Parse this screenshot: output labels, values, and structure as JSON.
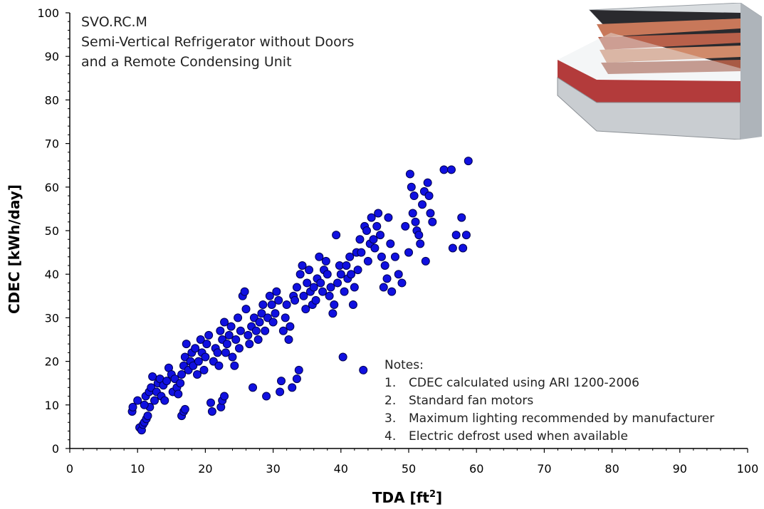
{
  "figure": {
    "title_lines": [
      "SVO.RC.M",
      "Semi-Vertical Refrigerator without Doors",
      "and a Remote Condensing Unit"
    ],
    "notes_heading": "Notes:",
    "notes": [
      {
        "num": "1.",
        "text": "CDEC calculated using ARI 1200-2006"
      },
      {
        "num": "2.",
        "text": "Standard fan motors"
      },
      {
        "num": "3.",
        "text": "Maximum lighting recommended by manufacturer"
      },
      {
        "num": "4.",
        "text": "Electric defrost used when available"
      }
    ],
    "photo_icon": "refrigerated-display-case-photo"
  },
  "colors": {
    "marker_fill": "#1010e0",
    "marker_stroke": "#000050",
    "axis": "#000000"
  },
  "chart_data": {
    "type": "scatter",
    "xlabel": "TDA [ft",
    "xlabel_sup": "2",
    "xlabel_end": "]",
    "ylabel": "CDEC [kWh/day]",
    "xlim": [
      0,
      100
    ],
    "ylim": [
      0,
      100
    ],
    "xticks": [
      "0",
      "10",
      "20",
      "30",
      "40",
      "50",
      "60",
      "70",
      "80",
      "90",
      "100"
    ],
    "yticks": [
      "0",
      "10",
      "20",
      "30",
      "40",
      "50",
      "60",
      "70",
      "80",
      "90",
      "100"
    ],
    "grid": false,
    "legend": "none",
    "points": [
      [
        9.2,
        8.5
      ],
      [
        9.3,
        9.5
      ],
      [
        10,
        11
      ],
      [
        10.3,
        4.8
      ],
      [
        10.6,
        4.2
      ],
      [
        10.8,
        5.5
      ],
      [
        11,
        6
      ],
      [
        11.3,
        6.8
      ],
      [
        11.5,
        7.5
      ],
      [
        11.8,
        9.5
      ],
      [
        11,
        10
      ],
      [
        11.2,
        12
      ],
      [
        11.7,
        13
      ],
      [
        12,
        14
      ],
      [
        12.2,
        16.5
      ],
      [
        12.5,
        11
      ],
      [
        12.8,
        13
      ],
      [
        13,
        15
      ],
      [
        13.3,
        16
      ],
      [
        13.5,
        12
      ],
      [
        13.8,
        14.5
      ],
      [
        14,
        11
      ],
      [
        14.3,
        15.5
      ],
      [
        14.6,
        18.5
      ],
      [
        15,
        17
      ],
      [
        15.2,
        13
      ],
      [
        15.5,
        16
      ],
      [
        15.8,
        14
      ],
      [
        16,
        12.5
      ],
      [
        16.3,
        15
      ],
      [
        16.5,
        7.5
      ],
      [
        16.8,
        8.5
      ],
      [
        17,
        9
      ],
      [
        16.5,
        17
      ],
      [
        16.8,
        19
      ],
      [
        17,
        21
      ],
      [
        17.2,
        24
      ],
      [
        17.5,
        18
      ],
      [
        17.8,
        20
      ],
      [
        18,
        22
      ],
      [
        18.2,
        19
      ],
      [
        18.5,
        23
      ],
      [
        18.8,
        17
      ],
      [
        19,
        20
      ],
      [
        19.3,
        25
      ],
      [
        19.5,
        22
      ],
      [
        19.8,
        18
      ],
      [
        20,
        21
      ],
      [
        20.2,
        24
      ],
      [
        20.5,
        26
      ],
      [
        20.8,
        10.5
      ],
      [
        21,
        8.5
      ],
      [
        21.2,
        20
      ],
      [
        21.5,
        23
      ],
      [
        21.8,
        22
      ],
      [
        22,
        19
      ],
      [
        22.2,
        27
      ],
      [
        22.5,
        25
      ],
      [
        22.8,
        29
      ],
      [
        23,
        22
      ],
      [
        22.3,
        9.5
      ],
      [
        22.5,
        11
      ],
      [
        22.8,
        12
      ],
      [
        23.2,
        24
      ],
      [
        23.5,
        26
      ],
      [
        23.8,
        28
      ],
      [
        24,
        21
      ],
      [
        24.3,
        19
      ],
      [
        24.5,
        25
      ],
      [
        24.8,
        30
      ],
      [
        25,
        23
      ],
      [
        25.2,
        27
      ],
      [
        25.5,
        35
      ],
      [
        25.8,
        36
      ],
      [
        26,
        32
      ],
      [
        26.3,
        26
      ],
      [
        26.5,
        24
      ],
      [
        26.8,
        28
      ],
      [
        27,
        14
      ],
      [
        27.2,
        30
      ],
      [
        27.5,
        27
      ],
      [
        27.8,
        25
      ],
      [
        28,
        29
      ],
      [
        28.3,
        31
      ],
      [
        28.5,
        33
      ],
      [
        28.8,
        27
      ],
      [
        29,
        12
      ],
      [
        29.2,
        30
      ],
      [
        29.5,
        35
      ],
      [
        29.8,
        33
      ],
      [
        30,
        29
      ],
      [
        30.3,
        31
      ],
      [
        30.5,
        36
      ],
      [
        30.8,
        34
      ],
      [
        31,
        13
      ],
      [
        31.2,
        15.5
      ],
      [
        31.5,
        27
      ],
      [
        31.8,
        30
      ],
      [
        32,
        33
      ],
      [
        32.3,
        25
      ],
      [
        32.5,
        28
      ],
      [
        32.8,
        14
      ],
      [
        33,
        35
      ],
      [
        33.2,
        34
      ],
      [
        33.5,
        16
      ],
      [
        33.8,
        18
      ],
      [
        33.5,
        37
      ],
      [
        34,
        40
      ],
      [
        34.3,
        42
      ],
      [
        34.5,
        35
      ],
      [
        34.8,
        32
      ],
      [
        35,
        38
      ],
      [
        35.3,
        41
      ],
      [
        35.5,
        36
      ],
      [
        35.8,
        33
      ],
      [
        36,
        37
      ],
      [
        36.3,
        34
      ],
      [
        36.5,
        39
      ],
      [
        36.8,
        44
      ],
      [
        37,
        38
      ],
      [
        37.3,
        36
      ],
      [
        37.5,
        41
      ],
      [
        37.8,
        43
      ],
      [
        38,
        40
      ],
      [
        38.3,
        35
      ],
      [
        38.5,
        37
      ],
      [
        38.8,
        31
      ],
      [
        39,
        33
      ],
      [
        39.3,
        49
      ],
      [
        39.5,
        38
      ],
      [
        39.8,
        42
      ],
      [
        40,
        40
      ],
      [
        40.3,
        21
      ],
      [
        40.5,
        36
      ],
      [
        40.8,
        42
      ],
      [
        41,
        39
      ],
      [
        41.3,
        44
      ],
      [
        41.5,
        40
      ],
      [
        41.8,
        33
      ],
      [
        42,
        37
      ],
      [
        42.3,
        45
      ],
      [
        42.5,
        41
      ],
      [
        42.8,
        48
      ],
      [
        43,
        45
      ],
      [
        43.3,
        18
      ],
      [
        43.5,
        51
      ],
      [
        43.8,
        50
      ],
      [
        44,
        43
      ],
      [
        44.3,
        47
      ],
      [
        44.5,
        53
      ],
      [
        44.8,
        48
      ],
      [
        45,
        46
      ],
      [
        45.3,
        51
      ],
      [
        45.5,
        54
      ],
      [
        45.8,
        49
      ],
      [
        46,
        44
      ],
      [
        46.3,
        37
      ],
      [
        46.5,
        42
      ],
      [
        46.8,
        39
      ],
      [
        47,
        53
      ],
      [
        47.3,
        47
      ],
      [
        47.5,
        36
      ],
      [
        48,
        44
      ],
      [
        48.5,
        40
      ],
      [
        49,
        38
      ],
      [
        49.5,
        51
      ],
      [
        50,
        45
      ],
      [
        50.2,
        63
      ],
      [
        50.4,
        60
      ],
      [
        50.6,
        54
      ],
      [
        50.8,
        58
      ],
      [
        51,
        52
      ],
      [
        51.2,
        50
      ],
      [
        51.5,
        49
      ],
      [
        51.7,
        47
      ],
      [
        52,
        56
      ],
      [
        52.3,
        59
      ],
      [
        52.5,
        43
      ],
      [
        52.8,
        61
      ],
      [
        53,
        58
      ],
      [
        53.2,
        54
      ],
      [
        53.5,
        52
      ],
      [
        55.2,
        64
      ],
      [
        56.3,
        64
      ],
      [
        56.5,
        46
      ],
      [
        57,
        49
      ],
      [
        57.8,
        53
      ],
      [
        58,
        46
      ],
      [
        58.5,
        49
      ],
      [
        58.8,
        66
      ]
    ]
  }
}
